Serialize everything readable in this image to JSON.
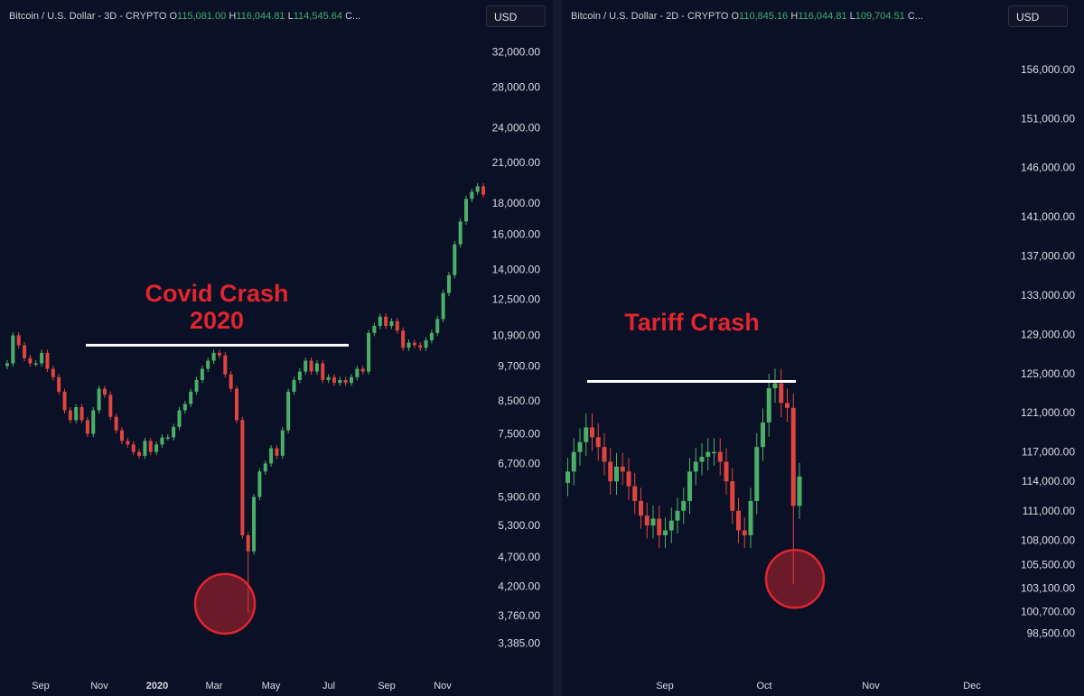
{
  "panels": [
    {
      "id": "left",
      "legend": {
        "symbol": "Bitcoin / U.S. Dollar - 3D - CRYPTO",
        "open_label": "O",
        "open": "115,081.00",
        "high_label": "H",
        "high": "116,044.81",
        "low_label": "L",
        "low": "114,545.64",
        "close_label": "C..."
      },
      "currency": "USD"
    },
    {
      "id": "right",
      "legend": {
        "symbol": "Bitcoin / U.S. Dollar - 2D - CRYPTO",
        "open_label": "O",
        "open": "110,845.16",
        "high_label": "H",
        "high": "116,044.81",
        "low_label": "L",
        "low": "109,704.51",
        "close_label": "C..."
      },
      "currency": "USD"
    }
  ],
  "chart_data": [
    {
      "type": "candlestick",
      "title": "Bitcoin / U.S. Dollar - 3D - CRYPTO",
      "y_scale": "log",
      "ylim": [
        3200,
        33500
      ],
      "y_ticks": [
        "32,000.00",
        "28,000.00",
        "24,000.00",
        "21,000.00",
        "18,000.00",
        "16,000.00",
        "14,000.00",
        "12,500.00",
        "10,900.00",
        "9,700.00",
        "8,500.00",
        "7,500.00",
        "6,700.00",
        "5,900.00",
        "5,300.00",
        "4,700.00",
        "4,200.00",
        "3,760.00",
        "3,385.00"
      ],
      "x_ticks": [
        "Sep",
        "Nov",
        "2020",
        "Mar",
        "May",
        "Jul",
        "Sep",
        "Nov"
      ],
      "annotations": {
        "label_lines": [
          "Covid Crash",
          "2020"
        ],
        "resistance_level": 10500,
        "crash_low": 3800
      },
      "grid": false,
      "colors": {
        "up": "#4caf67",
        "down": "#e0443e",
        "annotation": "#e0252f",
        "line": "#ffffff"
      },
      "closes": [
        9800,
        10900,
        10500,
        10000,
        9800,
        9800,
        10200,
        9600,
        9300,
        8800,
        8200,
        7900,
        8300,
        7900,
        7500,
        8200,
        8900,
        8700,
        8000,
        7600,
        7300,
        7200,
        7000,
        6900,
        7300,
        7000,
        7200,
        7400,
        7400,
        7700,
        8200,
        8400,
        8800,
        9200,
        9600,
        9900,
        10200,
        10100,
        9400,
        8900,
        7900,
        5100,
        4800,
        5900,
        6500,
        6700,
        7100,
        6900,
        7600,
        8800,
        9200,
        9500,
        9900,
        9500,
        9800,
        9200,
        9300,
        9100,
        9200,
        9100,
        9300,
        9600,
        9500,
        11000,
        11300,
        11700,
        11300,
        11500,
        11100,
        10400,
        10600,
        10500,
        10400,
        10700,
        11000,
        11600,
        12800,
        13700,
        15400,
        16800,
        18300,
        18800,
        19200,
        18600
      ]
    },
    {
      "type": "candlestick",
      "title": "Bitcoin / U.S. Dollar - 2D - CRYPTO",
      "y_scale": "linear",
      "ylim": [
        96800,
        158500
      ],
      "y_ticks": [
        "156,000.00",
        "151,000.00",
        "146,000.00",
        "141,000.00",
        "137,000.00",
        "133,000.00",
        "129,000.00",
        "125,000.00",
        "121,000.00",
        "117,000.00",
        "114,000.00",
        "111,000.00",
        "108,000.00",
        "105,500.00",
        "103,100.00",
        "100,700.00",
        "98,500.00"
      ],
      "x_ticks": [
        "Sep",
        "Oct",
        "Nov",
        "Dec"
      ],
      "annotations": {
        "label_lines": [
          "Tariff Crash"
        ],
        "resistance_level": 124200,
        "crash_low": 103500
      },
      "grid": false,
      "colors": {
        "up": "#4caf67",
        "down": "#e0443e",
        "annotation": "#e0252f",
        "line": "#ffffff"
      },
      "closes": [
        115000,
        117000,
        118000,
        119500,
        118500,
        117500,
        116000,
        114000,
        115500,
        115000,
        113500,
        112000,
        110500,
        109500,
        110200,
        108500,
        109000,
        110000,
        111000,
        112000,
        115000,
        116000,
        116500,
        117000,
        117000,
        116000,
        114000,
        111000,
        109000,
        108500,
        112000,
        117500,
        120000,
        123500,
        124000,
        122000,
        121500,
        111500,
        114500
      ]
    }
  ]
}
